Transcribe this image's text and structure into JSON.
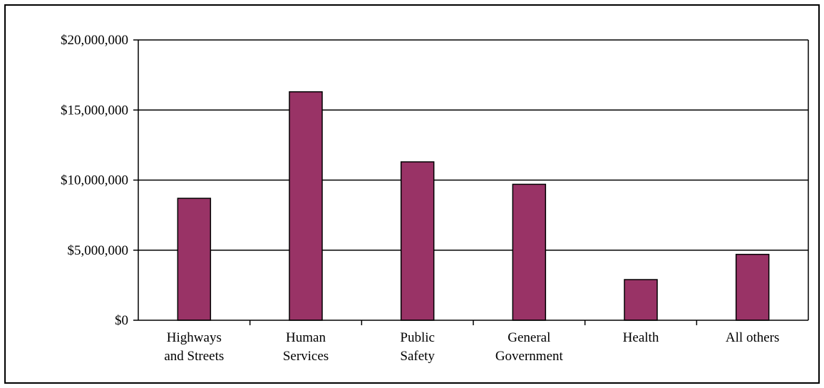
{
  "chart_data": {
    "type": "bar",
    "title": "",
    "xlabel": "",
    "ylabel": "",
    "categories": [
      [
        "Highways",
        "and Streets"
      ],
      [
        "Human",
        "Services"
      ],
      [
        "Public",
        "Safety"
      ],
      [
        "General",
        "Government"
      ],
      [
        "Health"
      ],
      [
        "All others"
      ]
    ],
    "values": [
      8700000,
      16300000,
      11300000,
      9700000,
      2900000,
      4700000
    ],
    "ylim": [
      0,
      20000000
    ],
    "yticks": [
      0,
      5000000,
      10000000,
      15000000,
      20000000
    ],
    "ytick_labels": [
      "$0",
      "$5,000,000",
      "$10,000,000",
      "$15,000,000",
      "$20,000,000"
    ],
    "bar_color": "#993366",
    "grid": true,
    "legend": false
  }
}
